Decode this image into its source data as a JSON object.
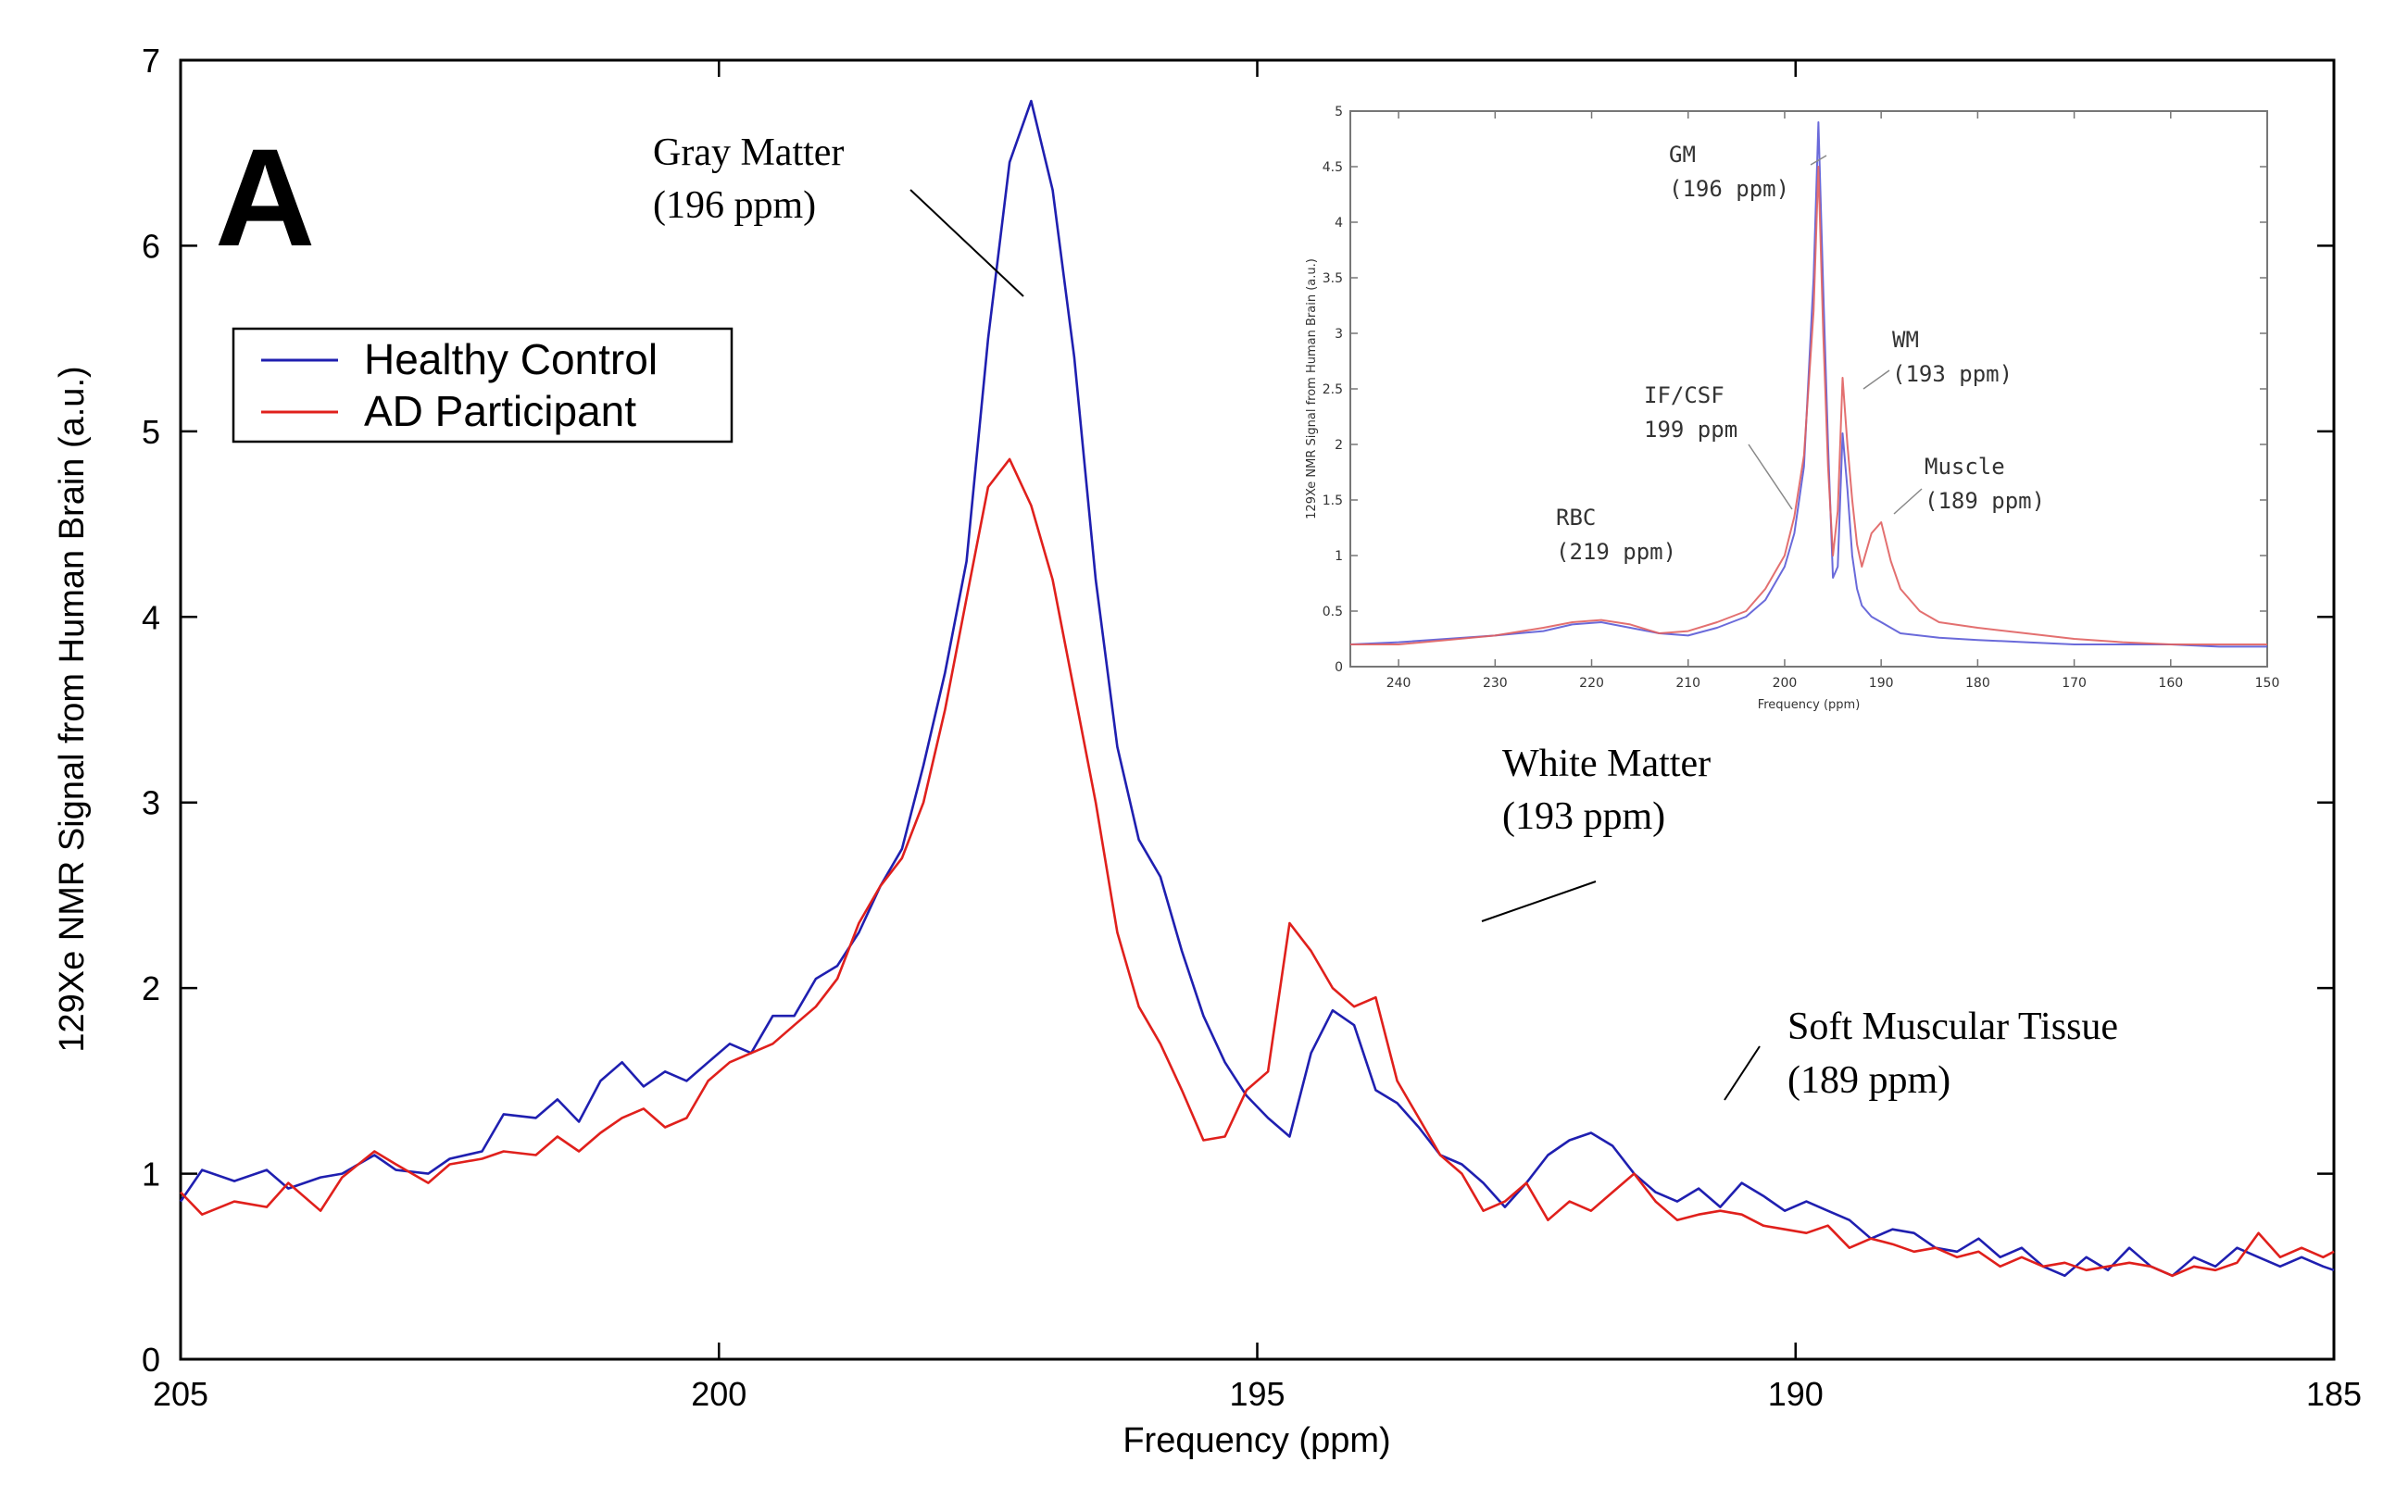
{
  "chart_data": [
    {
      "type": "line",
      "panel_label": "A",
      "xlabel": "Frequency (ppm)",
      "ylabel": "129Xe NMR Signal from Human Brain (a.u.)",
      "xlim": [
        205,
        185
      ],
      "ylim": [
        0,
        7
      ],
      "x_ticks": [
        205,
        200,
        195,
        190,
        185
      ],
      "y_ticks": [
        0,
        1,
        2,
        3,
        4,
        5,
        6,
        7
      ],
      "legend": {
        "position": "top-left"
      },
      "series": [
        {
          "name": "Healthy Control",
          "color": "#1f1fb0",
          "x": [
            205,
            204.8,
            204.5,
            204.2,
            204,
            203.7,
            203.5,
            203.2,
            203,
            202.7,
            202.5,
            202.2,
            202,
            201.7,
            201.5,
            201.3,
            201.1,
            200.9,
            200.7,
            200.5,
            200.3,
            200.1,
            199.9,
            199.7,
            199.5,
            199.3,
            199.1,
            198.9,
            198.7,
            198.5,
            198.3,
            198.1,
            197.9,
            197.7,
            197.5,
            197.3,
            197.1,
            196.9,
            196.7,
            196.5,
            196.3,
            196.1,
            195.9,
            195.7,
            195.5,
            195.3,
            195.1,
            194.9,
            194.7,
            194.5,
            194.3,
            194.1,
            193.9,
            193.7,
            193.5,
            193.3,
            193.1,
            192.9,
            192.7,
            192.5,
            192.3,
            192.1,
            191.9,
            191.7,
            191.5,
            191.3,
            191.1,
            190.9,
            190.7,
            190.5,
            190.3,
            190.1,
            189.9,
            189.7,
            189.5,
            189.3,
            189.1,
            188.9,
            188.7,
            188.5,
            188.3,
            188.1,
            187.9,
            187.7,
            187.5,
            187.3,
            187.1,
            186.9,
            186.7,
            186.5,
            186.3,
            186.1,
            185.9,
            185.7,
            185.5,
            185.3,
            185.1,
            185
          ],
          "y": [
            0.85,
            1.02,
            0.96,
            1.02,
            0.92,
            0.98,
            1.0,
            1.1,
            1.02,
            1.0,
            1.08,
            1.12,
            1.32,
            1.3,
            1.4,
            1.28,
            1.5,
            1.6,
            1.47,
            1.55,
            1.5,
            1.6,
            1.7,
            1.65,
            1.85,
            1.85,
            2.05,
            2.12,
            2.3,
            2.55,
            2.75,
            3.2,
            3.7,
            4.3,
            5.5,
            6.45,
            6.78,
            6.3,
            5.4,
            4.2,
            3.3,
            2.8,
            2.6,
            2.2,
            1.85,
            1.6,
            1.42,
            1.3,
            1.2,
            1.65,
            1.88,
            1.8,
            1.45,
            1.38,
            1.25,
            1.1,
            1.05,
            0.95,
            0.82,
            0.95,
            1.1,
            1.18,
            1.22,
            1.15,
            1.0,
            0.9,
            0.85,
            0.92,
            0.82,
            0.95,
            0.88,
            0.8,
            0.85,
            0.8,
            0.75,
            0.65,
            0.7,
            0.68,
            0.6,
            0.58,
            0.65,
            0.55,
            0.6,
            0.5,
            0.45,
            0.55,
            0.48,
            0.6,
            0.5,
            0.45,
            0.55,
            0.5,
            0.6,
            0.55,
            0.5,
            0.55,
            0.5,
            0.48
          ]
        },
        {
          "name": "AD Participant",
          "color": "#e0201c",
          "x": [
            205,
            204.8,
            204.5,
            204.2,
            204,
            203.7,
            203.5,
            203.2,
            203,
            202.7,
            202.5,
            202.2,
            202,
            201.7,
            201.5,
            201.3,
            201.1,
            200.9,
            200.7,
            200.5,
            200.3,
            200.1,
            199.9,
            199.7,
            199.5,
            199.3,
            199.1,
            198.9,
            198.7,
            198.5,
            198.3,
            198.1,
            197.9,
            197.7,
            197.5,
            197.3,
            197.1,
            196.9,
            196.7,
            196.5,
            196.3,
            196.1,
            195.9,
            195.7,
            195.5,
            195.3,
            195.1,
            194.9,
            194.7,
            194.5,
            194.3,
            194.1,
            193.9,
            193.7,
            193.5,
            193.3,
            193.1,
            192.9,
            192.7,
            192.5,
            192.3,
            192.1,
            191.9,
            191.7,
            191.5,
            191.3,
            191.1,
            190.9,
            190.7,
            190.5,
            190.3,
            190.1,
            189.9,
            189.7,
            189.5,
            189.3,
            189.1,
            188.9,
            188.7,
            188.5,
            188.3,
            188.1,
            187.9,
            187.7,
            187.5,
            187.3,
            187.1,
            186.9,
            186.7,
            186.5,
            186.3,
            186.1,
            185.9,
            185.7,
            185.5,
            185.3,
            185.1,
            185
          ],
          "y": [
            0.9,
            0.78,
            0.85,
            0.82,
            0.95,
            0.8,
            0.98,
            1.12,
            1.05,
            0.95,
            1.05,
            1.08,
            1.12,
            1.1,
            1.2,
            1.12,
            1.22,
            1.3,
            1.35,
            1.25,
            1.3,
            1.5,
            1.6,
            1.65,
            1.7,
            1.8,
            1.9,
            2.05,
            2.35,
            2.55,
            2.7,
            3.0,
            3.5,
            4.1,
            4.7,
            4.85,
            4.6,
            4.2,
            3.6,
            3.0,
            2.3,
            1.9,
            1.7,
            1.45,
            1.18,
            1.2,
            1.45,
            1.55,
            2.35,
            2.2,
            2.0,
            1.9,
            1.95,
            1.5,
            1.3,
            1.1,
            1.0,
            0.8,
            0.85,
            0.95,
            0.75,
            0.85,
            0.8,
            0.9,
            1.0,
            0.85,
            0.75,
            0.78,
            0.8,
            0.78,
            0.72,
            0.7,
            0.68,
            0.72,
            0.6,
            0.65,
            0.62,
            0.58,
            0.6,
            0.55,
            0.58,
            0.5,
            0.55,
            0.5,
            0.52,
            0.48,
            0.5,
            0.52,
            0.5,
            0.45,
            0.5,
            0.48,
            0.52,
            0.68,
            0.55,
            0.6,
            0.55,
            0.58
          ]
        }
      ],
      "annotations": [
        {
          "label": "Gray Matter",
          "value": "(196 ppm)"
        },
        {
          "label": "White Matter",
          "value": "(193 ppm)"
        },
        {
          "label": "Soft Muscular Tissue",
          "value": "(189 ppm)"
        }
      ]
    },
    {
      "type": "line",
      "role": "inset",
      "xlabel": "Frequency (ppm)",
      "ylabel": "129Xe NMR Signal from Human Brain (a.u.)",
      "xlim": [
        245,
        150
      ],
      "ylim": [
        0,
        5
      ],
      "x_ticks": [
        240,
        230,
        220,
        210,
        200,
        190,
        180,
        170,
        160,
        150
      ],
      "y_ticks": [
        0,
        0.5,
        1,
        1.5,
        2,
        2.5,
        3,
        3.5,
        4,
        4.5,
        5
      ],
      "y_tick_labels": [
        "0",
        "0.5",
        "1",
        "1.5",
        "2",
        "2.5",
        "3",
        "3.5",
        "4",
        "4.5",
        "5"
      ],
      "series": [
        {
          "name": "Healthy Control",
          "color": "#5a5ad6",
          "x": [
            245,
            240,
            235,
            230,
            225,
            222,
            219,
            216,
            213,
            210,
            207,
            204,
            202,
            200,
            199,
            198,
            197,
            196.5,
            196,
            195.5,
            195,
            194.5,
            194,
            193.5,
            193,
            192.5,
            192,
            191,
            190,
            189,
            188,
            186,
            184,
            180,
            175,
            170,
            165,
            160,
            155,
            150
          ],
          "y": [
            0.2,
            0.22,
            0.25,
            0.28,
            0.32,
            0.38,
            0.4,
            0.35,
            0.3,
            0.28,
            0.35,
            0.45,
            0.6,
            0.9,
            1.2,
            1.8,
            3.5,
            4.9,
            3.4,
            2.0,
            0.8,
            0.9,
            2.1,
            1.6,
            1.0,
            0.7,
            0.55,
            0.45,
            0.4,
            0.35,
            0.3,
            0.28,
            0.26,
            0.24,
            0.22,
            0.2,
            0.2,
            0.2,
            0.18,
            0.18
          ]
        },
        {
          "name": "AD Participant",
          "color": "#e06060",
          "x": [
            245,
            240,
            235,
            230,
            225,
            222,
            219,
            216,
            213,
            210,
            207,
            204,
            202,
            200,
            199,
            198,
            197,
            196.5,
            196,
            195.5,
            195,
            194.5,
            194,
            193.5,
            193,
            192.5,
            192,
            191,
            190,
            189,
            188,
            186,
            184,
            180,
            175,
            170,
            165,
            160,
            155,
            150
          ],
          "y": [
            0.2,
            0.2,
            0.24,
            0.28,
            0.35,
            0.4,
            0.42,
            0.38,
            0.3,
            0.32,
            0.4,
            0.5,
            0.7,
            1.0,
            1.35,
            1.9,
            3.2,
            4.5,
            3.0,
            1.8,
            1.0,
            1.4,
            2.6,
            2.0,
            1.5,
            1.1,
            0.9,
            1.2,
            1.3,
            0.95,
            0.7,
            0.5,
            0.4,
            0.35,
            0.3,
            0.25,
            0.22,
            0.2,
            0.2,
            0.2
          ]
        }
      ],
      "annotations": [
        {
          "label": "GM",
          "value": "(196 ppm)"
        },
        {
          "label": "WM",
          "value": "(193 ppm)"
        },
        {
          "label": "IF/CSF",
          "value": "199 ppm"
        },
        {
          "label": "Muscle",
          "value": "(189 ppm)"
        },
        {
          "label": "RBC",
          "value": "(219 ppm)"
        }
      ]
    }
  ]
}
